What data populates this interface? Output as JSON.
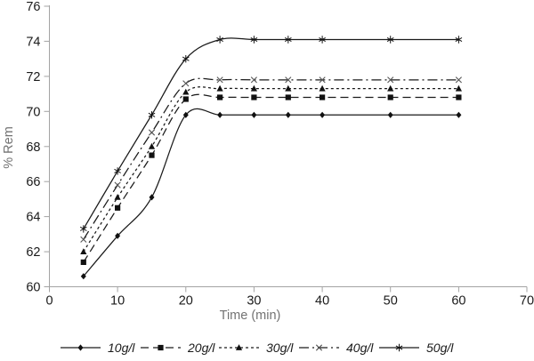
{
  "chart_data": {
    "type": "line",
    "title": "",
    "xlabel": "Time (min)",
    "ylabel": "% Rem",
    "xlim": [
      0,
      70
    ],
    "ylim": [
      60,
      76
    ],
    "xticks": [
      0,
      10,
      20,
      30,
      40,
      50,
      60,
      70
    ],
    "yticks": [
      60,
      62,
      64,
      66,
      68,
      70,
      72,
      74,
      76
    ],
    "grid": false,
    "legend_position": "bottom",
    "x": [
      5,
      10,
      15,
      20,
      25,
      30,
      35,
      40,
      50,
      60
    ],
    "series": [
      {
        "name": "10g/l",
        "marker": "diamond",
        "dash": "solid",
        "values": [
          60.6,
          62.9,
          65.1,
          69.8,
          69.8,
          69.8,
          69.8,
          69.8,
          69.8,
          69.8
        ]
      },
      {
        "name": "20g/l",
        "marker": "square",
        "dash": "longdash",
        "values": [
          61.4,
          64.5,
          67.5,
          70.7,
          70.8,
          70.8,
          70.8,
          70.8,
          70.8,
          70.8
        ]
      },
      {
        "name": "30g/l",
        "marker": "triangle",
        "dash": "shortdash",
        "values": [
          62.0,
          65.1,
          68.0,
          71.1,
          71.3,
          71.3,
          71.3,
          71.3,
          71.3,
          71.3
        ]
      },
      {
        "name": "40g/l",
        "marker": "x",
        "dash": "dashdot",
        "values": [
          62.7,
          65.8,
          68.8,
          71.6,
          71.8,
          71.8,
          71.8,
          71.8,
          71.8,
          71.8
        ]
      },
      {
        "name": "50g/l",
        "marker": "star",
        "dash": "solid",
        "values": [
          63.3,
          66.6,
          69.8,
          73.0,
          74.1,
          74.1,
          74.1,
          74.1,
          74.1,
          74.1
        ]
      }
    ],
    "colors": {
      "line": "#1a1a1a",
      "marker": "#111111",
      "x_marker": "#555555",
      "axis": "#a3a3a3",
      "tick_label": "#1a1a1a",
      "axis_title": "#737373",
      "background": "#ffffff"
    }
  }
}
